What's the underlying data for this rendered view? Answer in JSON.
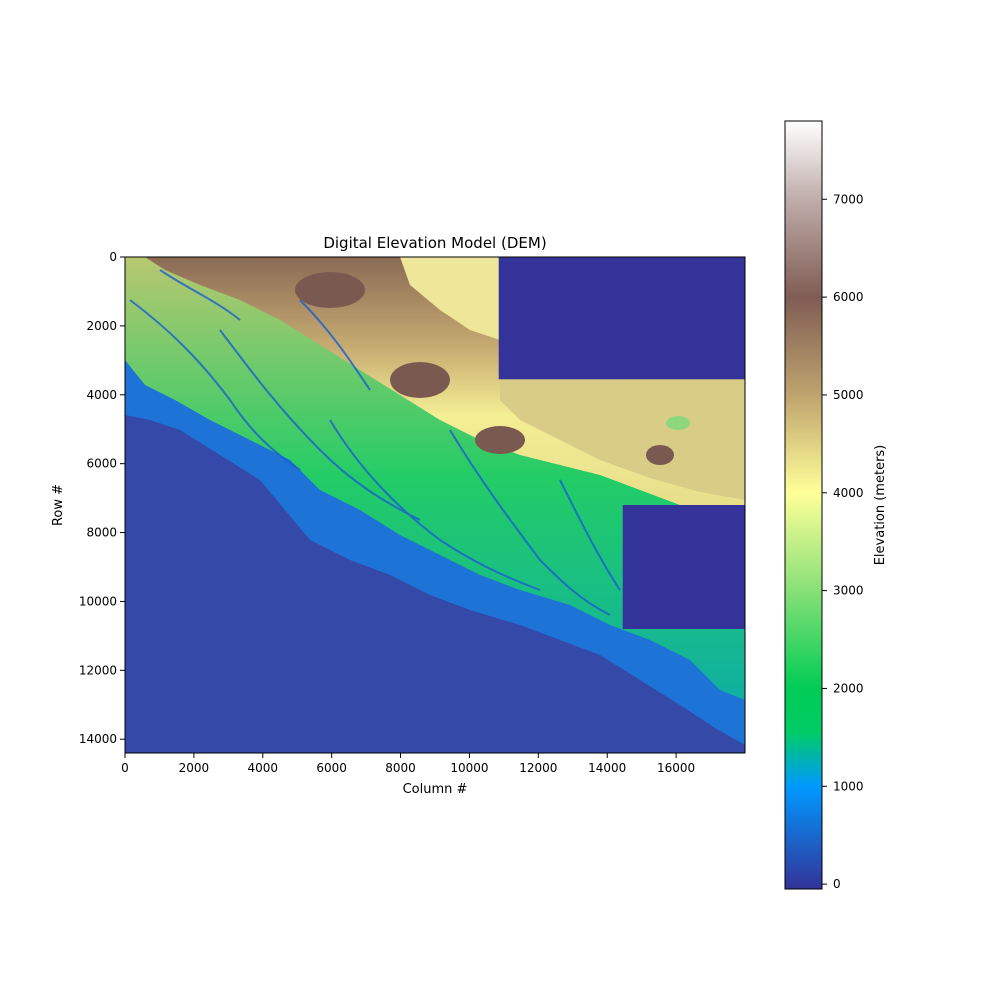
{
  "chart_data": {
    "type": "heatmap",
    "title": "Digital Elevation Model (DEM)",
    "xlabel": "Column #",
    "ylabel": "Row #",
    "xlim": [
      0,
      18000
    ],
    "ylim": [
      14400,
      0
    ],
    "x_ticks": [
      0,
      2000,
      4000,
      6000,
      8000,
      10000,
      12000,
      14000,
      16000
    ],
    "y_ticks": [
      0,
      2000,
      4000,
      6000,
      8000,
      10000,
      12000,
      14000
    ],
    "colorbar": {
      "label": "Elevation (meters)",
      "range": [
        -50,
        7800
      ],
      "ticks": [
        0,
        1000,
        2000,
        3000,
        4000,
        5000,
        6000,
        7000
      ],
      "colormap": "terrain",
      "stops": [
        {
          "value": -50,
          "color": "#333399"
        },
        {
          "value": 1000,
          "color": "#0099ff"
        },
        {
          "value": 1550,
          "color": "#00cc66"
        },
        {
          "value": 2000,
          "color": "#00cc55"
        },
        {
          "value": 3000,
          "color": "#88e077"
        },
        {
          "value": 4000,
          "color": "#ffff99"
        },
        {
          "value": 5000,
          "color": "#bfa36e"
        },
        {
          "value": 6000,
          "color": "#805c54"
        },
        {
          "value": 7000,
          "color": "#bfadaa"
        },
        {
          "value": 7800,
          "color": "#ffffff"
        }
      ]
    },
    "nodata_blocks": [
      {
        "col_range": [
          10850,
          18000
        ],
        "row_range": [
          0,
          3550
        ],
        "color": "#333399"
      },
      {
        "col_range": [
          14450,
          18000
        ],
        "row_range": [
          7200,
          10800
        ],
        "color": "#333399"
      }
    ]
  }
}
